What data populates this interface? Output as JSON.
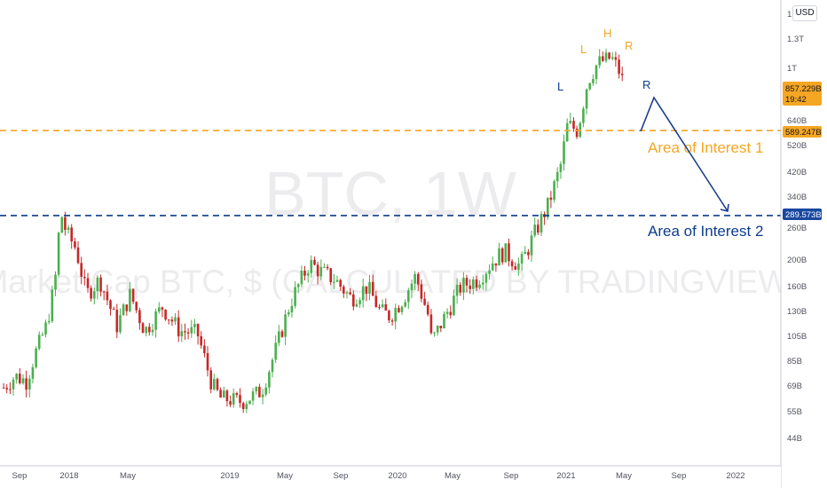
{
  "watermark": {
    "symbol": "BTC, 1W",
    "description": "Market Cap BTC, $ (CALCULATED BY TRADINGVIEW)"
  },
  "currency_badge": "USD",
  "price_labels": {
    "current": "857.229B",
    "countdown": "19:42",
    "level1": "589.247B",
    "level2": "289.573B"
  },
  "annotations": {
    "area1": "Area of Interest 1",
    "area2": "Area of Interest 2",
    "pattern": {
      "left_shoulder": "L",
      "head": "H",
      "right_shoulder": "R",
      "left_shoulder_low": "L",
      "right_shoulder_low": "R"
    }
  },
  "colors": {
    "up": "#4caf50",
    "down": "#c62828",
    "level1": "#f5a623",
    "level2": "#0d3c8c",
    "current_badge": "#f5a623",
    "level1_badge": "#f5a623",
    "level2_badge": "#1848a0",
    "arrow": "#1a3f8f",
    "watermark": "#ececee"
  },
  "chart_data": {
    "type": "candlestick",
    "title": "BTC, 1W",
    "subtitle": "Market Cap BTC, $ (CALCULATED BY TRADINGVIEW)",
    "y_scale": "log",
    "y_ticks": [
      "1.3T",
      "1T",
      "640B",
      "520B",
      "420B",
      "340B",
      "260B",
      "200B",
      "160B",
      "130B",
      "105B",
      "85B",
      "69B",
      "55B",
      "44B"
    ],
    "y_tick_values": [
      1300,
      1000,
      640,
      520,
      420,
      340,
      260,
      200,
      160,
      130,
      105,
      85,
      69,
      55,
      44
    ],
    "x_ticks": [
      "Sep",
      "2018",
      "May",
      "2019",
      "May",
      "Sep",
      "2020",
      "May",
      "Sep",
      "2021",
      "May",
      "Sep",
      "2022"
    ],
    "x_tick_dates": [
      "2017-09-01",
      "2018-01-01",
      "2018-05-01",
      "2019-01-01",
      "2019-05-01",
      "2019-09-01",
      "2020-01-01",
      "2020-05-01",
      "2020-09-01",
      "2021-01-01",
      "2021-05-01",
      "2021-09-01",
      "2022-01-01"
    ],
    "horizontal_levels": [
      {
        "name": "Area of Interest 1",
        "value": 589.247
      },
      {
        "name": "Area of Interest 2",
        "value": 289.573
      }
    ],
    "last_value": 857.229,
    "close_path_dates": [
      "2017-07-24",
      "2017-08-21",
      "2017-09-18",
      "2017-10-09",
      "2017-11-06",
      "2017-11-27",
      "2017-12-11",
      "2017-12-25",
      "2018-01-15",
      "2018-02-05",
      "2018-03-05",
      "2018-04-09",
      "2018-05-07",
      "2018-06-11",
      "2018-07-23",
      "2018-09-03",
      "2018-10-15",
      "2018-11-19",
      "2018-12-10",
      "2019-01-28",
      "2019-03-11",
      "2019-04-08",
      "2019-05-13",
      "2019-06-24",
      "2019-07-22",
      "2019-08-19",
      "2019-09-23",
      "2019-10-28",
      "2019-11-25",
      "2019-12-16",
      "2020-01-13",
      "2020-02-10",
      "2020-03-09",
      "2020-03-16",
      "2020-04-20",
      "2020-05-18",
      "2020-06-22",
      "2020-07-27",
      "2020-08-17",
      "2020-09-21",
      "2020-10-19",
      "2020-11-23",
      "2020-12-21",
      "2021-01-04",
      "2021-01-25",
      "2021-02-15",
      "2021-03-08",
      "2021-04-05",
      "2021-04-19",
      "2021-05-03"
    ],
    "close_path_values": [
      68,
      75,
      72,
      90,
      115,
      165,
      300,
      250,
      220,
      150,
      170,
      115,
      150,
      110,
      135,
      110,
      108,
      70,
      62,
      60,
      66,
      90,
      140,
      195,
      180,
      170,
      145,
      160,
      130,
      125,
      145,
      175,
      125,
      100,
      130,
      160,
      170,
      200,
      215,
      190,
      240,
      320,
      450,
      620,
      590,
      900,
      1050,
      1100,
      1000,
      857.229
    ]
  }
}
